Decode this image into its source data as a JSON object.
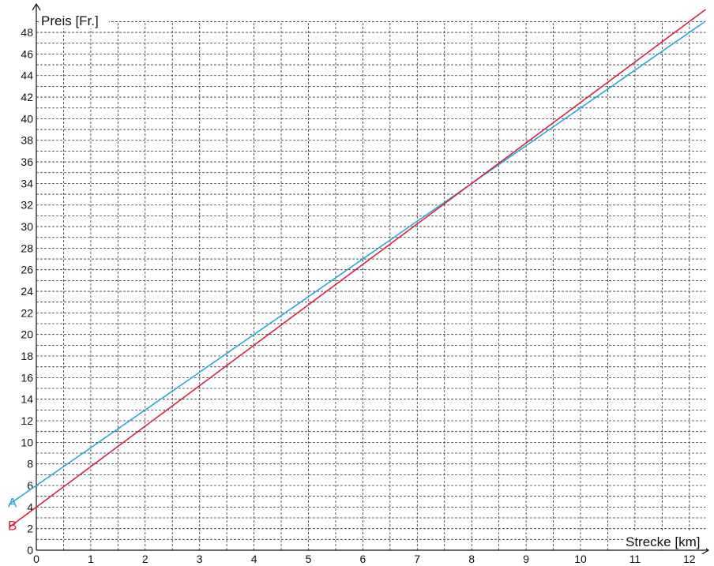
{
  "chart_data": {
    "type": "line",
    "title": "",
    "xlabel": "Strecke [km]",
    "ylabel": "Preis [Fr.]",
    "xlim": [
      0,
      12.3
    ],
    "ylim": [
      0,
      49
    ],
    "x_ticks": [
      0,
      1,
      2,
      3,
      4,
      5,
      6,
      7,
      8,
      9,
      10,
      11,
      12
    ],
    "y_ticks": [
      0,
      2,
      4,
      6,
      8,
      10,
      12,
      14,
      16,
      18,
      20,
      22,
      24,
      26,
      28,
      30,
      32,
      34,
      36,
      38,
      40,
      42,
      44,
      46,
      48
    ],
    "grid": true,
    "x_minor_step": 0.5,
    "y_minor_step": 1,
    "legend": "labels at left end of lines",
    "series": [
      {
        "name": "A",
        "color": "#2aa8d8",
        "x": [
          0,
          12.3
        ],
        "y": [
          6,
          49.05
        ]
      },
      {
        "name": "B",
        "color": "#d8213f",
        "x": [
          0,
          12.3
        ],
        "y": [
          4,
          50.13
        ]
      }
    ]
  }
}
